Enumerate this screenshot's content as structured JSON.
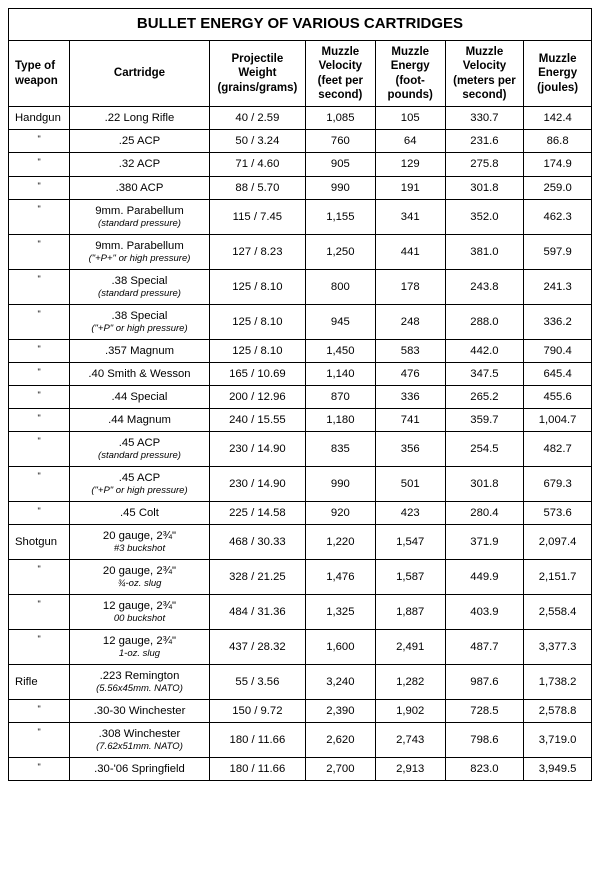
{
  "title": "BULLET ENERGY OF VARIOUS CARTRIDGES",
  "columns": [
    "Type of weapon",
    "Cartridge",
    "Projectile Weight (grains/grams)",
    "Muzzle Velocity (feet per second)",
    "Muzzle Energy (foot-pounds)",
    "Muzzle Velocity (meters per second)",
    "Muzzle Energy (joules)"
  ],
  "ditto": "\"",
  "rows": [
    {
      "weapon": "Handgun",
      "cartridge": ".22 Long Rifle",
      "sub": "",
      "pw": "40 / 2.59",
      "mvf": "1,085",
      "mef": "105",
      "mvm": "330.7",
      "mej": "142.4"
    },
    {
      "weapon": "",
      "cartridge": ".25 ACP",
      "sub": "",
      "pw": "50 / 3.24",
      "mvf": "760",
      "mef": "64",
      "mvm": "231.6",
      "mej": "86.8"
    },
    {
      "weapon": "",
      "cartridge": ".32 ACP",
      "sub": "",
      "pw": "71 / 4.60",
      "mvf": "905",
      "mef": "129",
      "mvm": "275.8",
      "mej": "174.9"
    },
    {
      "weapon": "",
      "cartridge": ".380 ACP",
      "sub": "",
      "pw": "88 / 5.70",
      "mvf": "990",
      "mef": "191",
      "mvm": "301.8",
      "mej": "259.0"
    },
    {
      "weapon": "",
      "cartridge": "9mm. Parabellum",
      "sub": "(standard pressure)",
      "pw": "115 / 7.45",
      "mvf": "1,155",
      "mef": "341",
      "mvm": "352.0",
      "mej": "462.3"
    },
    {
      "weapon": "",
      "cartridge": "9mm. Parabellum",
      "sub": "(\"+P+\" or high pressure)",
      "pw": "127 / 8.23",
      "mvf": "1,250",
      "mef": "441",
      "mvm": "381.0",
      "mej": "597.9"
    },
    {
      "weapon": "",
      "cartridge": ".38 Special",
      "sub": "(standard pressure)",
      "pw": "125 / 8.10",
      "mvf": "800",
      "mef": "178",
      "mvm": "243.8",
      "mej": "241.3"
    },
    {
      "weapon": "",
      "cartridge": ".38 Special",
      "sub": "(\"+P\" or high pressure)",
      "pw": "125 / 8.10",
      "mvf": "945",
      "mef": "248",
      "mvm": "288.0",
      "mej": "336.2"
    },
    {
      "weapon": "",
      "cartridge": ".357 Magnum",
      "sub": "",
      "pw": "125 / 8.10",
      "mvf": "1,450",
      "mef": "583",
      "mvm": "442.0",
      "mej": "790.4"
    },
    {
      "weapon": "",
      "cartridge": ".40 Smith & Wesson",
      "sub": "",
      "pw": "165 / 10.69",
      "mvf": "1,140",
      "mef": "476",
      "mvm": "347.5",
      "mej": "645.4"
    },
    {
      "weapon": "",
      "cartridge": ".44 Special",
      "sub": "",
      "pw": "200 / 12.96",
      "mvf": "870",
      "mef": "336",
      "mvm": "265.2",
      "mej": "455.6"
    },
    {
      "weapon": "",
      "cartridge": ".44 Magnum",
      "sub": "",
      "pw": "240 / 15.55",
      "mvf": "1,180",
      "mef": "741",
      "mvm": "359.7",
      "mej": "1,004.7"
    },
    {
      "weapon": "",
      "cartridge": ".45 ACP",
      "sub": "(standard pressure)",
      "pw": "230 / 14.90",
      "mvf": "835",
      "mef": "356",
      "mvm": "254.5",
      "mej": "482.7"
    },
    {
      "weapon": "",
      "cartridge": ".45 ACP",
      "sub": "(\"+P\" or high pressure)",
      "pw": "230 / 14.90",
      "mvf": "990",
      "mef": "501",
      "mvm": "301.8",
      "mej": "679.3"
    },
    {
      "weapon": "",
      "cartridge": ".45 Colt",
      "sub": "",
      "pw": "225 / 14.58",
      "mvf": "920",
      "mef": "423",
      "mvm": "280.4",
      "mej": "573.6"
    },
    {
      "weapon": "Shotgun",
      "cartridge": "20 gauge, 2¾\"",
      "sub": "#3 buckshot",
      "pw": "468 / 30.33",
      "mvf": "1,220",
      "mef": "1,547",
      "mvm": "371.9",
      "mej": "2,097.4"
    },
    {
      "weapon": "",
      "cartridge": "20 gauge, 2¾\"",
      "sub": "¾-oz. slug",
      "pw": "328 / 21.25",
      "mvf": "1,476",
      "mef": "1,587",
      "mvm": "449.9",
      "mej": "2,151.7"
    },
    {
      "weapon": "",
      "cartridge": "12 gauge, 2¾\"",
      "sub": "00 buckshot",
      "pw": "484 / 31.36",
      "mvf": "1,325",
      "mef": "1,887",
      "mvm": "403.9",
      "mej": "2,558.4"
    },
    {
      "weapon": "",
      "cartridge": "12 gauge, 2¾\"",
      "sub": "1-oz. slug",
      "pw": "437 / 28.32",
      "mvf": "1,600",
      "mef": "2,491",
      "mvm": "487.7",
      "mej": "3,377.3"
    },
    {
      "weapon": "Rifle",
      "cartridge": ".223 Remington",
      "sub": "(5.56x45mm. NATO)",
      "pw": "55 / 3.56",
      "mvf": "3,240",
      "mef": "1,282",
      "mvm": "987.6",
      "mej": "1,738.2"
    },
    {
      "weapon": "",
      "cartridge": ".30-30 Winchester",
      "sub": "",
      "pw": "150 / 9.72",
      "mvf": "2,390",
      "mef": "1,902",
      "mvm": "728.5",
      "mej": "2,578.8"
    },
    {
      "weapon": "",
      "cartridge": ".308 Winchester",
      "sub": "(7.62x51mm. NATO)",
      "pw": "180 / 11.66",
      "mvf": "2,620",
      "mef": "2,743",
      "mvm": "798.6",
      "mej": "3,719.0"
    },
    {
      "weapon": "",
      "cartridge": ".30-'06 Springfield",
      "sub": "",
      "pw": "180 / 11.66",
      "mvf": "2,700",
      "mef": "2,913",
      "mvm": "823.0",
      "mej": "3,949.5"
    }
  ]
}
